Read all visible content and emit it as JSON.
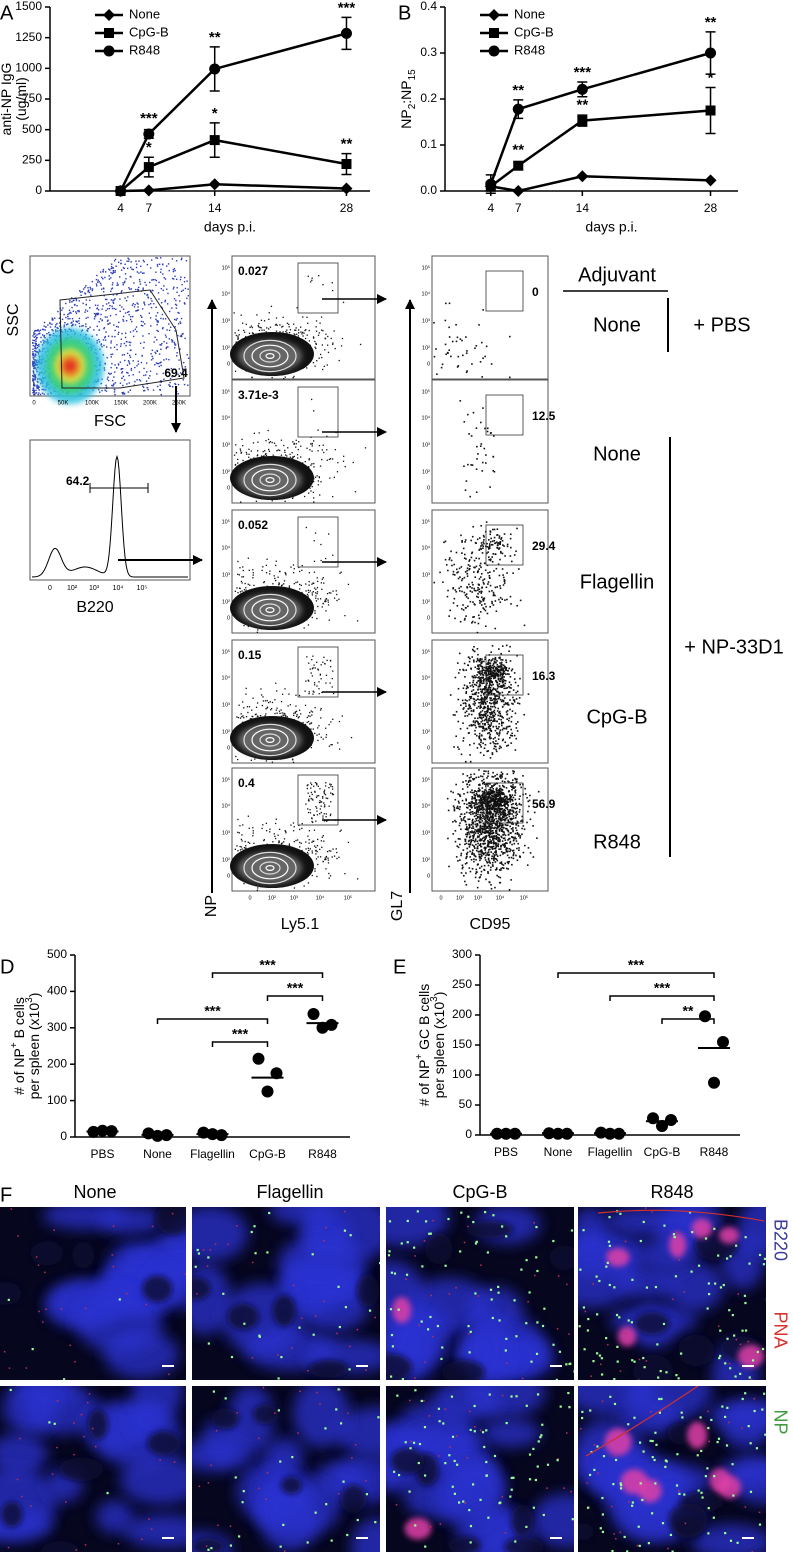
{
  "panel_letters": [
    "A",
    "B",
    "C",
    "D",
    "E",
    "F"
  ],
  "chart_data": [
    {
      "type": "line",
      "xlabel": "days p.i.",
      "ylabel": [
        [
          "anti-NP IgG"
        ],
        [
          "(ug/ml)"
        ]
      ],
      "xlim": [
        -3.5,
        30.5
      ],
      "ylim": [
        0,
        1500
      ],
      "xticks": [
        4,
        7,
        14,
        28
      ],
      "yticks": [
        0,
        250,
        500,
        750,
        1000,
        1250,
        1500
      ],
      "x": [
        4,
        7,
        14,
        28
      ],
      "legend": "upper left",
      "series": [
        {
          "name": "None",
          "marker": "diamond",
          "color": "#000000",
          "values": [
            0,
            5,
            55,
            20
          ]
        },
        {
          "name": "CpG-B",
          "marker": "square",
          "color": "#000000",
          "values": [
            0,
            195,
            415,
            220
          ],
          "errors": [
            null,
            80,
            140,
            85
          ],
          "significance": [
            null,
            "*",
            "*",
            "**"
          ]
        },
        {
          "name": "R848",
          "marker": "circle",
          "color": "#000000",
          "values": [
            0,
            465,
            995,
            1285
          ],
          "errors": [
            null,
            35,
            180,
            130
          ],
          "significance": [
            null,
            "***",
            "**",
            "***"
          ]
        }
      ]
    },
    {
      "type": "line",
      "xlabel": "days p.i.",
      "ylabel": [
        [
          "NP",
          "2",
          ":NP",
          "15"
        ]
      ],
      "ylabel_script": "sub",
      "xlim": [
        -1,
        31
      ],
      "ylim": [
        0,
        0.4
      ],
      "xticks": [
        4,
        7,
        14,
        28
      ],
      "yticks": [
        {
          "value": 0,
          "label": "0.0"
        },
        0.1,
        0.2,
        0.3,
        0.4
      ],
      "x": [
        4,
        7,
        14,
        28
      ],
      "legend": "upper left",
      "series": [
        {
          "name": "None",
          "marker": "diamond",
          "color": "#000000",
          "values": [
            0.01,
            0,
            0.032,
            0.023
          ]
        },
        {
          "name": "CpG-B",
          "marker": "square",
          "color": "#000000",
          "values": [
            0.01,
            0.055,
            0.153,
            0.175
          ],
          "errors": [
            0.01,
            0.008,
            0.012,
            0.05
          ],
          "significance": [
            null,
            "**",
            "**",
            "*"
          ]
        },
        {
          "name": "R848",
          "marker": "circle",
          "color": "#000000",
          "values": [
            0.015,
            0.178,
            0.221,
            0.3
          ],
          "errors": [
            0.02,
            0.02,
            0.016,
            0.046
          ],
          "significance": [
            null,
            "**",
            "***",
            "**"
          ]
        }
      ]
    },
    {
      "type": "strip",
      "categories": [
        "PBS",
        "None",
        "Flagellin",
        "CpG-B",
        "R848"
      ],
      "values": [
        [
          14,
          16,
          17
        ],
        [
          10,
          5,
          3
        ],
        [
          12,
          5,
          8
        ],
        [
          215,
          175,
          125
        ],
        [
          338,
          308,
          300
        ]
      ],
      "means": [
        15,
        6,
        8,
        163,
        313
      ],
      "ylim": [
        0,
        500
      ],
      "yticks": [
        0,
        100,
        200,
        300,
        400,
        500
      ],
      "ylabel": [
        [
          "# of NP",
          "+",
          " B cells"
        ],
        [
          "per spleen (x10",
          "3",
          ")"
        ]
      ],
      "ylabel_script": "super",
      "color": "#000000",
      "comparisons": [
        {
          "pair": [
            2,
            4
          ],
          "label": "***"
        },
        {
          "pair": [
            3,
            4
          ],
          "label": "***"
        },
        {
          "pair": [
            1,
            3
          ],
          "label": "***"
        },
        {
          "pair": [
            2,
            3
          ],
          "label": "***"
        }
      ]
    },
    {
      "type": "strip",
      "categories": [
        "PBS",
        "None",
        "Flagellin",
        "CpG-B",
        "R848"
      ],
      "values": [
        [
          2,
          2,
          2
        ],
        [
          3,
          2,
          2
        ],
        [
          4,
          2,
          2
        ],
        [
          28,
          25,
          15
        ],
        [
          198,
          155,
          87
        ]
      ],
      "means": [
        2,
        3,
        3,
        23,
        145
      ],
      "ylim": [
        0,
        300
      ],
      "yticks": [
        0,
        50,
        100,
        150,
        200,
        250,
        300
      ],
      "ylabel": [
        [
          "# of NP",
          "+",
          " GC B cells"
        ],
        [
          "per spleen (x10",
          "3",
          ")"
        ]
      ],
      "ylabel_script": "super",
      "color": "#000000",
      "comparisons": [
        {
          "pair": [
            1,
            4
          ],
          "label": "***"
        },
        {
          "pair": [
            2,
            4
          ],
          "label": "***"
        },
        {
          "pair": [
            3,
            4
          ],
          "label": "**"
        }
      ]
    }
  ],
  "flow": {
    "fsc_ssc": {
      "xlabel": "FSC",
      "ylabel": "SSC",
      "gate": "69.4",
      "xticks": [
        "0",
        "50K",
        "100K",
        "150K",
        "200K",
        "250K"
      ]
    },
    "b220": {
      "xlabel": "B220",
      "gate": "64.2"
    },
    "np_ly51": {
      "xlabel": "Ly5.1",
      "ylabel": "NP",
      "gates": [
        "0.027",
        "3.71e-3",
        "0.052",
        "0.15",
        "0.4"
      ]
    },
    "gl7_cd95": {
      "xlabel": "CD95",
      "ylabel": "GL7",
      "gates": [
        "0",
        "12.5",
        "29.4",
        "16.3",
        "56.9"
      ]
    },
    "log_ticks": [
      "0",
      "10²",
      "10³",
      "10⁴",
      "10⁵"
    ],
    "adjuvant_header": "Adjuvant",
    "adjuvants": [
      "None",
      "None",
      "Flagellin",
      "CpG-B",
      "R848"
    ],
    "groups": [
      "+ PBS",
      "+ NP-33D1"
    ]
  },
  "images": {
    "columns": [
      "None",
      "Flagellin",
      "CpG-B",
      "R848"
    ],
    "channels": [
      {
        "name": "B220",
        "color": "#3a3a9c"
      },
      {
        "name": "PNA",
        "color": "#d8302c"
      },
      {
        "name": "NP",
        "color": "#3c9a3c"
      }
    ]
  }
}
